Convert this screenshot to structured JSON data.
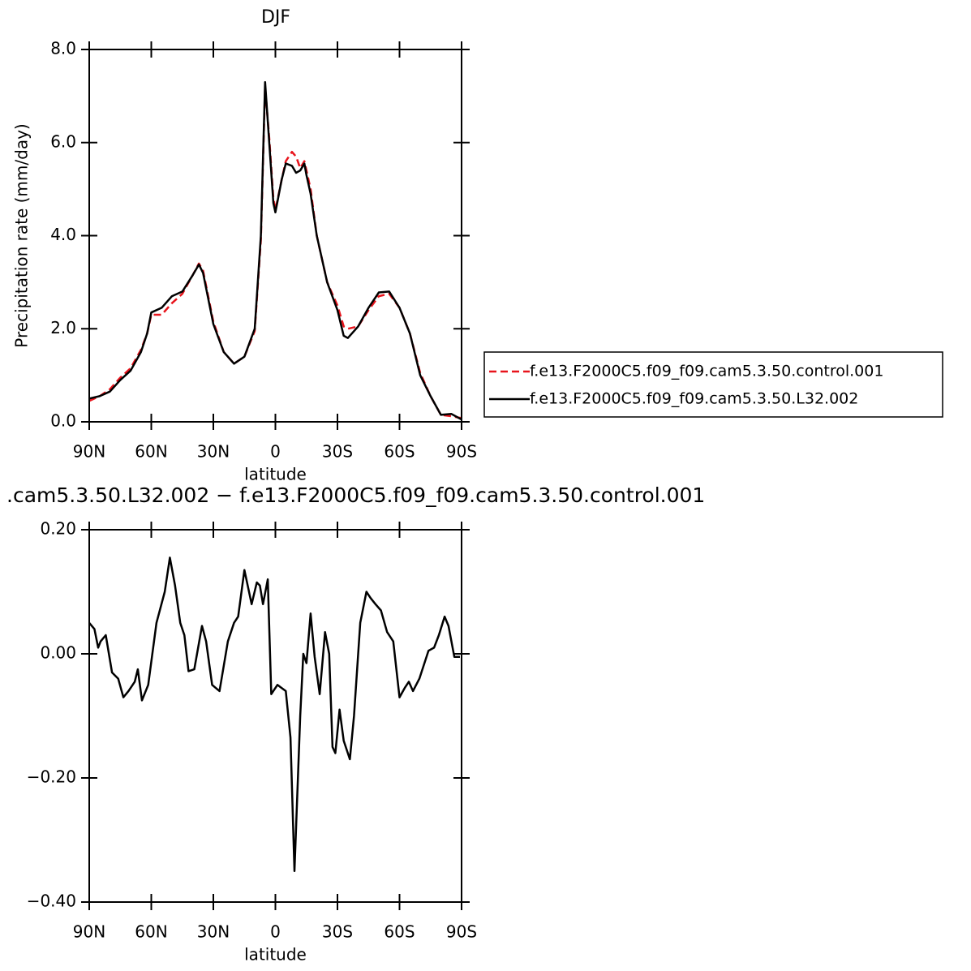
{
  "chart_data": [
    {
      "type": "line",
      "title": "DJF",
      "xlabel": "latitude",
      "ylabel": "Precipitation rate (mm/day)",
      "x": [
        90,
        85,
        80,
        75,
        70,
        65,
        62,
        60,
        55,
        50,
        45,
        40,
        37,
        35,
        30,
        25,
        20,
        15,
        10,
        7,
        5,
        3,
        1,
        0,
        -3,
        -5,
        -8,
        -10,
        -12,
        -14,
        -15,
        -17,
        -20,
        -25,
        -30,
        -33,
        -35,
        -40,
        -45,
        -50,
        -55,
        -60,
        -65,
        -70,
        -75,
        -80,
        -85,
        -90
      ],
      "series": [
        {
          "name": "f.e13.F2000C5.f09_f09.cam5.3.50.control.001",
          "color": "#e8141c",
          "dash": true,
          "values": [
            0.45,
            0.55,
            0.7,
            0.95,
            1.15,
            1.55,
            1.9,
            2.3,
            2.3,
            2.55,
            2.75,
            3.15,
            3.4,
            3.25,
            2.15,
            1.5,
            1.25,
            1.4,
            1.95,
            3.9,
            7.2,
            6.1,
            4.8,
            4.55,
            5.2,
            5.6,
            5.8,
            5.7,
            5.45,
            5.6,
            5.4,
            5.0,
            4.0,
            3.0,
            2.5,
            2.05,
            2.0,
            2.05,
            2.4,
            2.7,
            2.75,
            2.45,
            1.9,
            1.05,
            0.55,
            0.15,
            0.12,
            0.08
          ]
        },
        {
          "name": "f.e13.F2000C5.f09_f09.cam5.3.50.L32.002",
          "color": "#000000",
          "dash": false,
          "values": [
            0.5,
            0.55,
            0.65,
            0.9,
            1.1,
            1.5,
            1.9,
            2.35,
            2.45,
            2.7,
            2.8,
            3.15,
            3.38,
            3.2,
            2.1,
            1.5,
            1.25,
            1.4,
            2.0,
            4.0,
            7.3,
            6.0,
            4.7,
            4.5,
            5.2,
            5.55,
            5.5,
            5.35,
            5.4,
            5.55,
            5.3,
            4.9,
            4.0,
            3.0,
            2.4,
            1.85,
            1.8,
            2.05,
            2.45,
            2.78,
            2.8,
            2.45,
            1.9,
            1.0,
            0.55,
            0.15,
            0.17,
            0.05
          ]
        }
      ],
      "xlim": [
        90,
        -90
      ],
      "xticks": [
        {
          "value": 90,
          "label": "90N"
        },
        {
          "value": 60,
          "label": "60N"
        },
        {
          "value": 30,
          "label": "30N"
        },
        0,
        {
          "value": -30,
          "label": "30S"
        },
        {
          "value": -60,
          "label": "60S"
        },
        {
          "value": -90,
          "label": "90S"
        }
      ],
      "ylim": [
        0,
        8
      ],
      "yticks": [
        {
          "value": 0,
          "label": "0.0"
        },
        {
          "value": 2,
          "label": "2.0"
        },
        {
          "value": 4,
          "label": "4.0"
        },
        {
          "value": 6,
          "label": "6.0"
        },
        {
          "value": 8,
          "label": "8.0"
        }
      ],
      "legend": "right"
    },
    {
      "type": "line",
      "title": ".cam5.3.50.L32.002 − f.e13.F2000C5.f09_f09.cam5.3.50.control.001",
      "xlabel": "latitude",
      "x": [
        90,
        87.5,
        85.7,
        84.5,
        82,
        79,
        76,
        73.5,
        71,
        68,
        66.5,
        64.5,
        61.5,
        57.5,
        53.5,
        51,
        48.5,
        46,
        44,
        42,
        39.2,
        35.5,
        33.5,
        30.6,
        27,
        23,
        20,
        18,
        15,
        11.5,
        9,
        7.5,
        6,
        3.7,
        2,
        -1,
        -3,
        -5,
        -7.3,
        -9.2,
        -12,
        -13.5,
        -15,
        -17,
        -19,
        -21.4,
        -24,
        -26,
        -27.6,
        -29,
        -31,
        -33,
        -36,
        -38,
        -41,
        -44,
        -46,
        -48.4,
        -51,
        -54,
        -57,
        -60,
        -62.5,
        -64.5,
        -66.5,
        -69.6,
        -74,
        -76.7,
        -79,
        -81.8,
        -83.7,
        -86.5,
        -89.2
      ],
      "values": [
        0.05,
        0.04,
        0.01,
        0.02,
        0.03,
        -0.03,
        -0.04,
        -0.07,
        -0.06,
        -0.045,
        -0.025,
        -0.075,
        -0.05,
        0.05,
        0.1,
        0.155,
        0.11,
        0.05,
        0.03,
        -0.028,
        -0.025,
        0.045,
        0.02,
        -0.05,
        -0.06,
        0.02,
        0.05,
        0.06,
        0.135,
        0.08,
        0.115,
        0.11,
        0.08,
        0.12,
        -0.065,
        -0.05,
        -0.055,
        -0.06,
        -0.135,
        -0.35,
        -0.1,
        0.0,
        -0.015,
        0.065,
        -0.005,
        -0.065,
        0.035,
        0.0,
        -0.15,
        -0.16,
        -0.09,
        -0.14,
        -0.17,
        -0.1,
        0.05,
        0.1,
        0.09,
        0.08,
        0.07,
        0.035,
        0.02,
        -0.07,
        -0.055,
        -0.045,
        -0.06,
        -0.04,
        0.005,
        0.01,
        0.03,
        0.06,
        0.045,
        -0.005,
        -0.005
      ],
      "color": "#000000",
      "xlim": [
        90,
        -90
      ],
      "xticks": [
        {
          "value": 90,
          "label": "90N"
        },
        {
          "value": 60,
          "label": "60N"
        },
        {
          "value": 30,
          "label": "30N"
        },
        0,
        {
          "value": -30,
          "label": "30S"
        },
        {
          "value": -60,
          "label": "60S"
        },
        {
          "value": -90,
          "label": "90S"
        }
      ],
      "ylim": [
        -0.4,
        0.2
      ],
      "yticks": [
        {
          "value": 0.2,
          "label": "0.20"
        },
        {
          "value": 0,
          "label": "0.00"
        },
        {
          "value": -0.2,
          "label": "−0.20"
        },
        {
          "value": -0.4,
          "label": "−0.40"
        }
      ]
    }
  ]
}
